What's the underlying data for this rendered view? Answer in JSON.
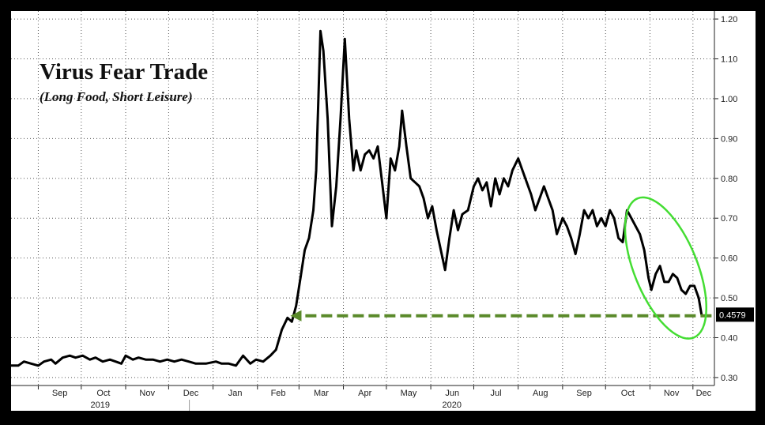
{
  "chart_data": {
    "type": "line",
    "title": "Virus Fear Trade",
    "subtitle": "(Long Food, Short Leisure)",
    "xlabel": "",
    "ylabel": "",
    "x_range": [
      "2019-08-13",
      "2020-12-16"
    ],
    "ylim": [
      0.28,
      1.22
    ],
    "yticks": [
      "0.30",
      "0.40",
      "0.50",
      "0.60",
      "0.70",
      "0.80",
      "0.90",
      "1.00",
      "1.10",
      "1.20"
    ],
    "month_ticks": [
      "Sep",
      "Oct",
      "Nov",
      "Dec",
      "Jan",
      "Feb",
      "Mar",
      "Apr",
      "May",
      "Jun",
      "Jul",
      "Aug",
      "Sep",
      "Oct",
      "Nov",
      "Dec"
    ],
    "year_labels": [
      "2019",
      "2020"
    ],
    "last_value_label": "0.4579",
    "grid": true,
    "axis_side": "right",
    "colors": {
      "line": "#000000",
      "arrow": "#5a8a2a",
      "ellipse": "#44dd33",
      "background": "#ffffff",
      "frame": "#000000",
      "last_label_bg": "#000000"
    },
    "annotations": [
      {
        "type": "dashed-arrow",
        "from": [
          "2020-12-14",
          0.455
        ],
        "to": [
          "2020-02-24",
          0.455
        ]
      },
      {
        "type": "ellipse",
        "center": [
          "2020-11-12",
          0.575
        ],
        "description": "green ellipse around recent decline"
      }
    ],
    "series": [
      {
        "values": [
          [
            "2019-08-13",
            0.33
          ],
          [
            "2019-08-18",
            0.33
          ],
          [
            "2019-08-22",
            0.34
          ],
          [
            "2019-08-27",
            0.335
          ],
          [
            "2019-09-01",
            0.33
          ],
          [
            "2019-09-05",
            0.34
          ],
          [
            "2019-09-10",
            0.345
          ],
          [
            "2019-09-13",
            0.335
          ],
          [
            "2019-09-18",
            0.35
          ],
          [
            "2019-09-23",
            0.355
          ],
          [
            "2019-09-27",
            0.35
          ],
          [
            "2019-10-02",
            0.355
          ],
          [
            "2019-10-07",
            0.345
          ],
          [
            "2019-10-11",
            0.35
          ],
          [
            "2019-10-16",
            0.34
          ],
          [
            "2019-10-21",
            0.345
          ],
          [
            "2019-10-25",
            0.34
          ],
          [
            "2019-10-29",
            0.335
          ],
          [
            "2019-11-01",
            0.355
          ],
          [
            "2019-11-06",
            0.345
          ],
          [
            "2019-11-10",
            0.35
          ],
          [
            "2019-11-15",
            0.345
          ],
          [
            "2019-11-20",
            0.345
          ],
          [
            "2019-11-25",
            0.34
          ],
          [
            "2019-11-30",
            0.345
          ],
          [
            "2019-12-05",
            0.34
          ],
          [
            "2019-12-10",
            0.345
          ],
          [
            "2019-12-15",
            0.34
          ],
          [
            "2019-12-20",
            0.335
          ],
          [
            "2019-12-27",
            0.335
          ],
          [
            "2020-01-03",
            0.34
          ],
          [
            "2020-01-07",
            0.335
          ],
          [
            "2020-01-12",
            0.335
          ],
          [
            "2020-01-17",
            0.33
          ],
          [
            "2020-01-22",
            0.355
          ],
          [
            "2020-01-27",
            0.335
          ],
          [
            "2020-01-31",
            0.345
          ],
          [
            "2020-02-05",
            0.34
          ],
          [
            "2020-02-10",
            0.355
          ],
          [
            "2020-02-14",
            0.37
          ],
          [
            "2020-02-18",
            0.42
          ],
          [
            "2020-02-22",
            0.45
          ],
          [
            "2020-02-25",
            0.44
          ],
          [
            "2020-02-28",
            0.48
          ],
          [
            "2020-03-02",
            0.55
          ],
          [
            "2020-03-05",
            0.62
          ],
          [
            "2020-03-08",
            0.65
          ],
          [
            "2020-03-11",
            0.72
          ],
          [
            "2020-03-13",
            0.82
          ],
          [
            "2020-03-16",
            1.17
          ],
          [
            "2020-03-18",
            1.12
          ],
          [
            "2020-03-21",
            0.95
          ],
          [
            "2020-03-24",
            0.68
          ],
          [
            "2020-03-27",
            0.78
          ],
          [
            "2020-03-30",
            0.95
          ],
          [
            "2020-04-02",
            1.15
          ],
          [
            "2020-04-05",
            0.95
          ],
          [
            "2020-04-08",
            0.82
          ],
          [
            "2020-04-10",
            0.87
          ],
          [
            "2020-04-13",
            0.82
          ],
          [
            "2020-04-16",
            0.86
          ],
          [
            "2020-04-19",
            0.87
          ],
          [
            "2020-04-22",
            0.85
          ],
          [
            "2020-04-25",
            0.88
          ],
          [
            "2020-04-28",
            0.79
          ],
          [
            "2020-05-01",
            0.7
          ],
          [
            "2020-05-04",
            0.85
          ],
          [
            "2020-05-07",
            0.82
          ],
          [
            "2020-05-10",
            0.88
          ],
          [
            "2020-05-12",
            0.97
          ],
          [
            "2020-05-15",
            0.88
          ],
          [
            "2020-05-18",
            0.8
          ],
          [
            "2020-05-21",
            0.79
          ],
          [
            "2020-05-24",
            0.78
          ],
          [
            "2020-05-27",
            0.75
          ],
          [
            "2020-05-30",
            0.7
          ],
          [
            "2020-06-02",
            0.73
          ],
          [
            "2020-06-05",
            0.67
          ],
          [
            "2020-06-08",
            0.62
          ],
          [
            "2020-06-11",
            0.57
          ],
          [
            "2020-06-14",
            0.65
          ],
          [
            "2020-06-17",
            0.72
          ],
          [
            "2020-06-20",
            0.67
          ],
          [
            "2020-06-23",
            0.71
          ],
          [
            "2020-06-27",
            0.72
          ],
          [
            "2020-07-01",
            0.78
          ],
          [
            "2020-07-04",
            0.8
          ],
          [
            "2020-07-07",
            0.77
          ],
          [
            "2020-07-10",
            0.79
          ],
          [
            "2020-07-13",
            0.73
          ],
          [
            "2020-07-16",
            0.8
          ],
          [
            "2020-07-19",
            0.76
          ],
          [
            "2020-07-22",
            0.8
          ],
          [
            "2020-07-25",
            0.78
          ],
          [
            "2020-07-28",
            0.82
          ],
          [
            "2020-08-01",
            0.85
          ],
          [
            "2020-08-04",
            0.82
          ],
          [
            "2020-08-07",
            0.79
          ],
          [
            "2020-08-10",
            0.76
          ],
          [
            "2020-08-13",
            0.72
          ],
          [
            "2020-08-16",
            0.75
          ],
          [
            "2020-08-19",
            0.78
          ],
          [
            "2020-08-22",
            0.75
          ],
          [
            "2020-08-25",
            0.72
          ],
          [
            "2020-08-28",
            0.66
          ],
          [
            "2020-09-01",
            0.7
          ],
          [
            "2020-09-04",
            0.68
          ],
          [
            "2020-09-07",
            0.65
          ],
          [
            "2020-09-10",
            0.61
          ],
          [
            "2020-09-13",
            0.66
          ],
          [
            "2020-09-16",
            0.72
          ],
          [
            "2020-09-19",
            0.7
          ],
          [
            "2020-09-22",
            0.72
          ],
          [
            "2020-09-25",
            0.68
          ],
          [
            "2020-09-28",
            0.7
          ],
          [
            "2020-10-01",
            0.68
          ],
          [
            "2020-10-04",
            0.72
          ],
          [
            "2020-10-07",
            0.7
          ],
          [
            "2020-10-10",
            0.65
          ],
          [
            "2020-10-13",
            0.64
          ],
          [
            "2020-10-16",
            0.72
          ],
          [
            "2020-10-19",
            0.7
          ],
          [
            "2020-10-22",
            0.68
          ],
          [
            "2020-10-25",
            0.66
          ],
          [
            "2020-10-28",
            0.62
          ],
          [
            "2020-10-31",
            0.55
          ],
          [
            "2020-11-02",
            0.52
          ],
          [
            "2020-11-05",
            0.56
          ],
          [
            "2020-11-08",
            0.58
          ],
          [
            "2020-11-11",
            0.54
          ],
          [
            "2020-11-14",
            0.54
          ],
          [
            "2020-11-17",
            0.56
          ],
          [
            "2020-11-20",
            0.55
          ],
          [
            "2020-11-23",
            0.52
          ],
          [
            "2020-11-26",
            0.51
          ],
          [
            "2020-11-29",
            0.53
          ],
          [
            "2020-12-02",
            0.53
          ],
          [
            "2020-12-05",
            0.5
          ],
          [
            "2020-12-07",
            0.4579
          ]
        ]
      }
    ]
  }
}
